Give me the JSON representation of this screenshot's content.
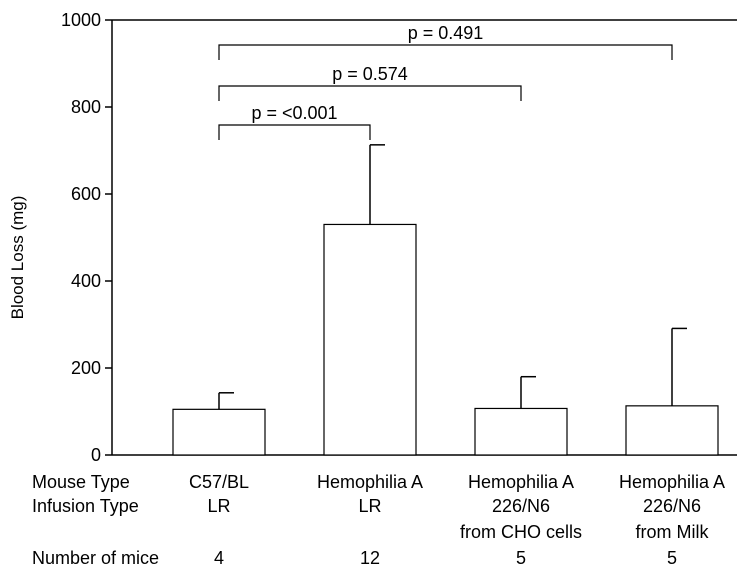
{
  "chart_data": {
    "type": "bar",
    "title": "",
    "xlabel": "",
    "ylabel": "Blood Loss (mg)",
    "ylim": [
      0,
      1000
    ],
    "yticks": [
      0,
      200,
      400,
      600,
      800,
      1000
    ],
    "grid": false,
    "categories": [
      {
        "lines": [
          "C57/BL",
          "LR"
        ],
        "mice": "4"
      },
      {
        "lines": [
          "Hemophilia A",
          "LR"
        ],
        "mice": "12"
      },
      {
        "lines": [
          "Hemophilia A",
          "226/N6",
          "from CHO cells"
        ],
        "mice": "5"
      },
      {
        "lines": [
          "Hemophilia A",
          "226/N6",
          "from Milk"
        ],
        "mice": "5"
      }
    ],
    "values": [
      105,
      530,
      107,
      113
    ],
    "errors": [
      38,
      183,
      73,
      178
    ],
    "row_labels": {
      "mouse_type": "Mouse Type",
      "infusion_type": "Infusion Type",
      "number_of_mice": "Number of mice"
    },
    "comparisons": [
      {
        "from": 0,
        "to": 1,
        "label": "p = <0.001"
      },
      {
        "from": 0,
        "to": 2,
        "label": "p = 0.574"
      },
      {
        "from": 0,
        "to": 3,
        "label": "p = 0.491"
      }
    ]
  }
}
